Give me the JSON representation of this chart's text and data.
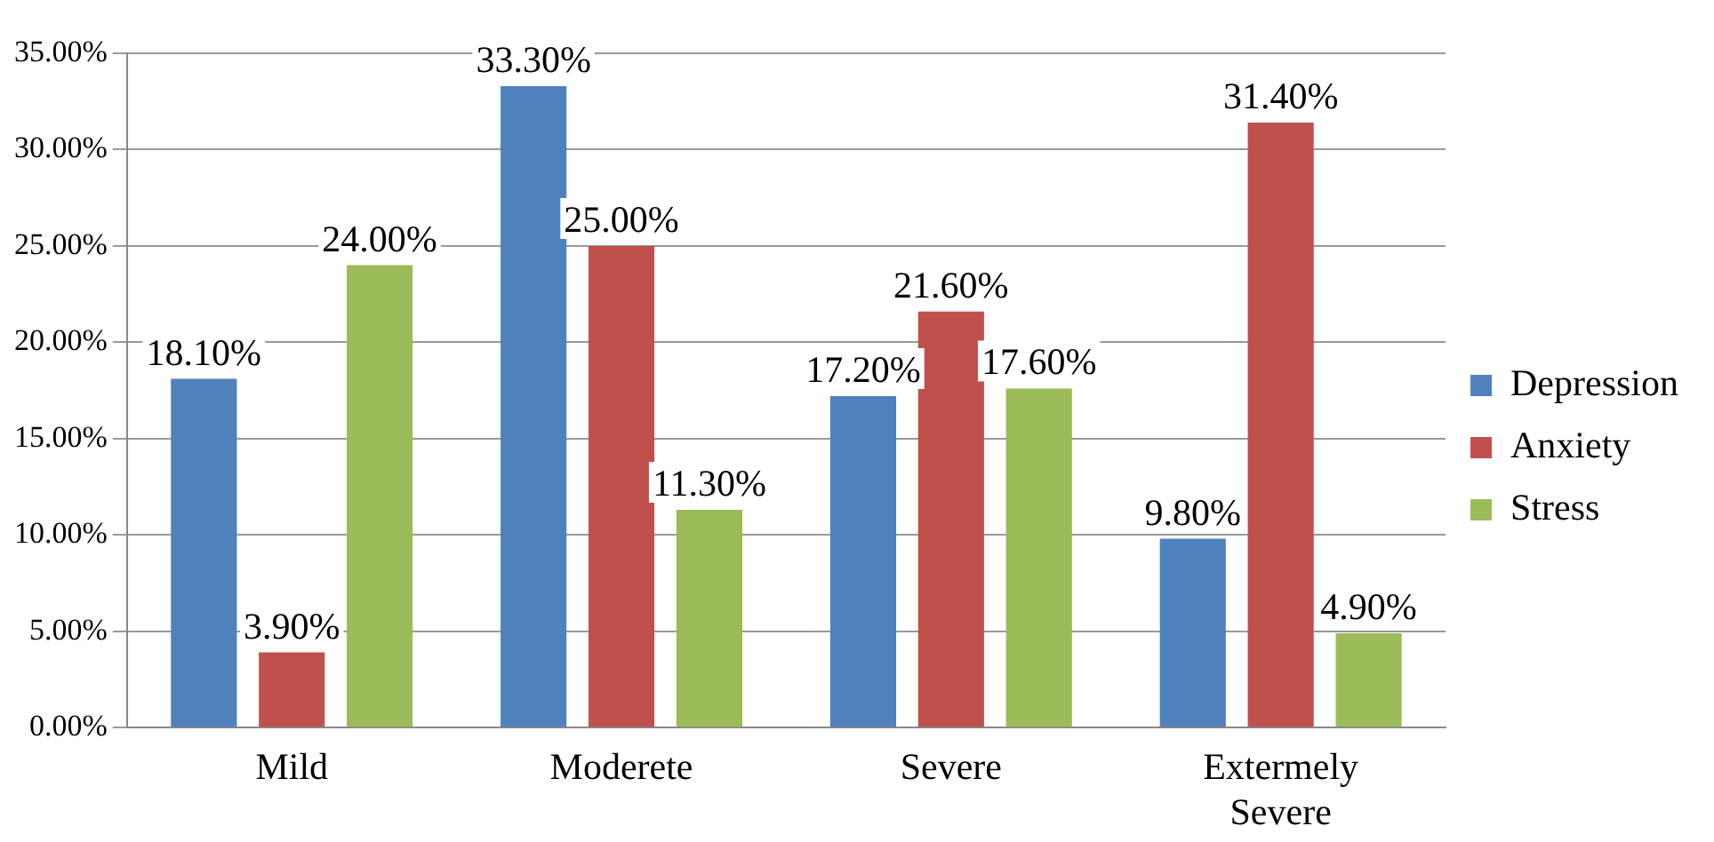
{
  "chart_data": {
    "type": "bar",
    "categories": [
      "Mild",
      "Moderete",
      "Severe",
      "Extermely Severe"
    ],
    "series": [
      {
        "name": "Depression",
        "color": "#4f81bd",
        "values": [
          18.1,
          33.3,
          17.2,
          9.8
        ],
        "value_labels": [
          "18.10%",
          "33.30%",
          "17.20%",
          "9.80%"
        ]
      },
      {
        "name": "Anxiety",
        "color": "#c0504d",
        "values": [
          3.9,
          25.0,
          21.6,
          31.4
        ],
        "value_labels": [
          "3.90%",
          "25.00%",
          "21.60%",
          "31.40%"
        ]
      },
      {
        "name": "Stress",
        "color": "#9bbb59",
        "values": [
          24.0,
          11.3,
          17.6,
          4.9
        ],
        "value_labels": [
          "24.00%",
          "11.30%",
          "17.60%",
          "4.90%"
        ]
      }
    ],
    "ylim": [
      0,
      35
    ],
    "yticks": [
      {
        "value": 0,
        "label": "0.00%"
      },
      {
        "value": 5,
        "label": "5.00%"
      },
      {
        "value": 10,
        "label": "10.00%"
      },
      {
        "value": 15,
        "label": "15.00%"
      },
      {
        "value": 20,
        "label": "20.00%"
      },
      {
        "value": 25,
        "label": "25.00%"
      },
      {
        "value": 30,
        "label": "30.00%"
      },
      {
        "value": 35,
        "label": "35.00%"
      }
    ],
    "grid": "y",
    "legend": "right"
  }
}
